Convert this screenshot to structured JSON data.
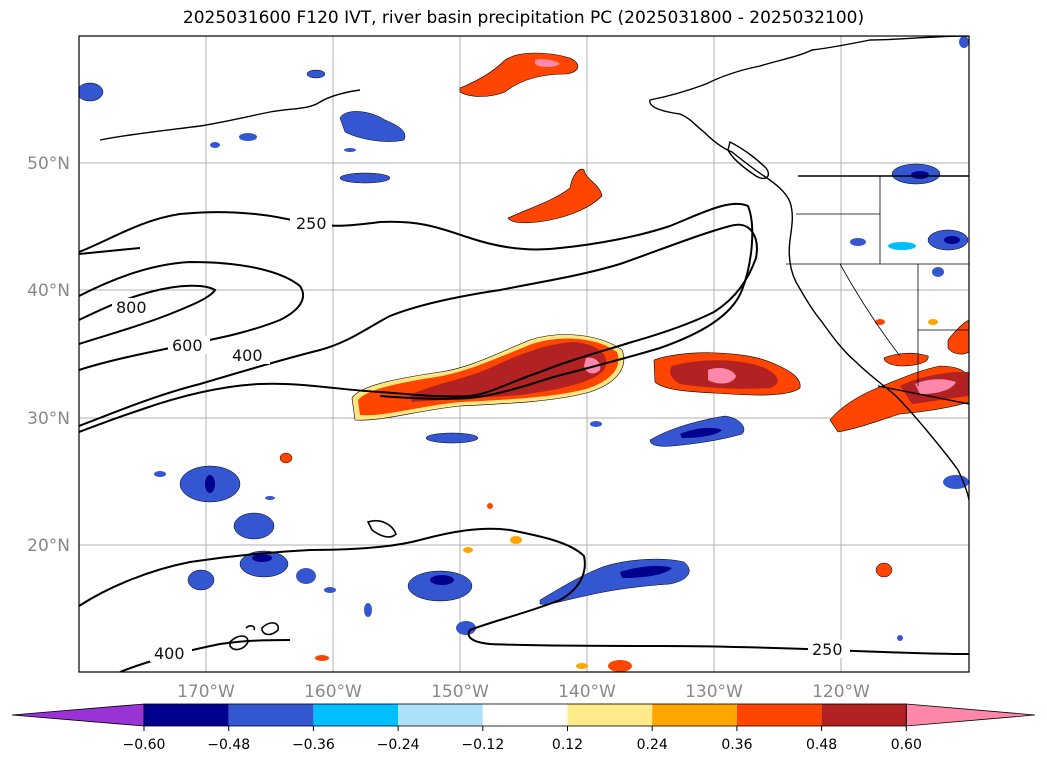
{
  "title": "2025031600 F120 IVT, river basin precipitation PC (2025031800 - 2025032100)",
  "map": {
    "lon_ticks": [
      "170°W",
      "160°W",
      "150°W",
      "140°W",
      "130°W",
      "120°W"
    ],
    "lat_ticks": [
      "50°N",
      "40°N",
      "30°N",
      "20°N"
    ],
    "contour_labels": [
      "250",
      "800",
      "600",
      "400",
      "400",
      "250"
    ]
  },
  "colorbar": {
    "ticks": [
      "−0.60",
      "−0.48",
      "−0.36",
      "−0.24",
      "−0.12",
      "0.12",
      "0.24",
      "0.36",
      "0.48",
      "0.60"
    ],
    "colors": [
      "#9a33d6",
      "#00008f",
      "#3457d1",
      "#00bfff",
      "#ade1fa",
      "#ffffff",
      "#ffea8a",
      "#ffa500",
      "#ff4500",
      "#b22222",
      "#ff88aa"
    ]
  }
}
